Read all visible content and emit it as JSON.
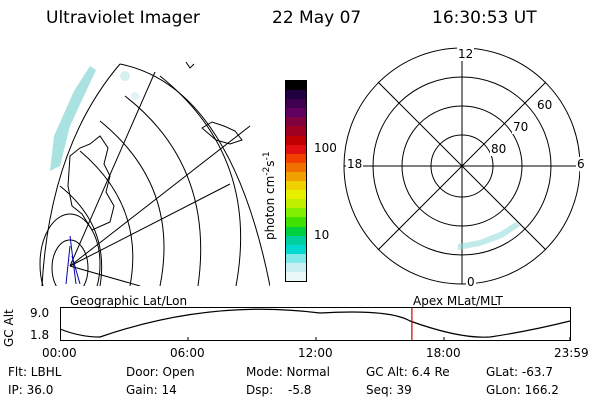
{
  "header": {
    "instrument": "Ultraviolet Imager",
    "date": "22 May 07",
    "time": "16:30:53 UT"
  },
  "colorbar": {
    "label_html": "photon cm",
    "unit_main": "photon cm",
    "unit_exp1": "-2",
    "unit_s": "s",
    "unit_exp2": "-1",
    "ticks": [
      "100",
      "10"
    ],
    "colors": [
      "#000000",
      "#200040",
      "#400050",
      "#600060",
      "#800040",
      "#a00020",
      "#c00000",
      "#e01010",
      "#f04000",
      "#f07000",
      "#f0a000",
      "#f0d000",
      "#e8f000",
      "#c0f000",
      "#80f000",
      "#40e000",
      "#00d040",
      "#00d0a0",
      "#00d8d0",
      "#80e8e8",
      "#c8f0f0",
      "#e8f8f8"
    ]
  },
  "polar": {
    "mlt_labels": [
      "12",
      "18",
      "6",
      "0"
    ],
    "lat_labels": [
      "60",
      "70",
      "80"
    ]
  },
  "orbit": {
    "ylabel": "GC Alt",
    "y_ticks": [
      "9.0",
      "1.8"
    ],
    "left_title": "Geographic Lat/Lon",
    "right_title": "Apex MLat/MLT",
    "x_ticks": [
      "00:00",
      "06:00",
      "12:00",
      "18:00",
      "23:59"
    ],
    "current_time_fraction": 0.69
  },
  "footer": {
    "row1": [
      "Flt: LBHL",
      "Door: Open",
      "Mode: Normal",
      "GC Alt: 6.4 Re",
      "GLat: -63.7"
    ],
    "row2": [
      "IP: 36.0",
      "Gain: 14",
      "Dsp:",
      "-5.8",
      "Seq: 39",
      "GLon: 166.2"
    ]
  },
  "colors": {
    "aurora": "#8ed8d8",
    "marker": "#cc0000",
    "nadir": "#0000aa"
  }
}
